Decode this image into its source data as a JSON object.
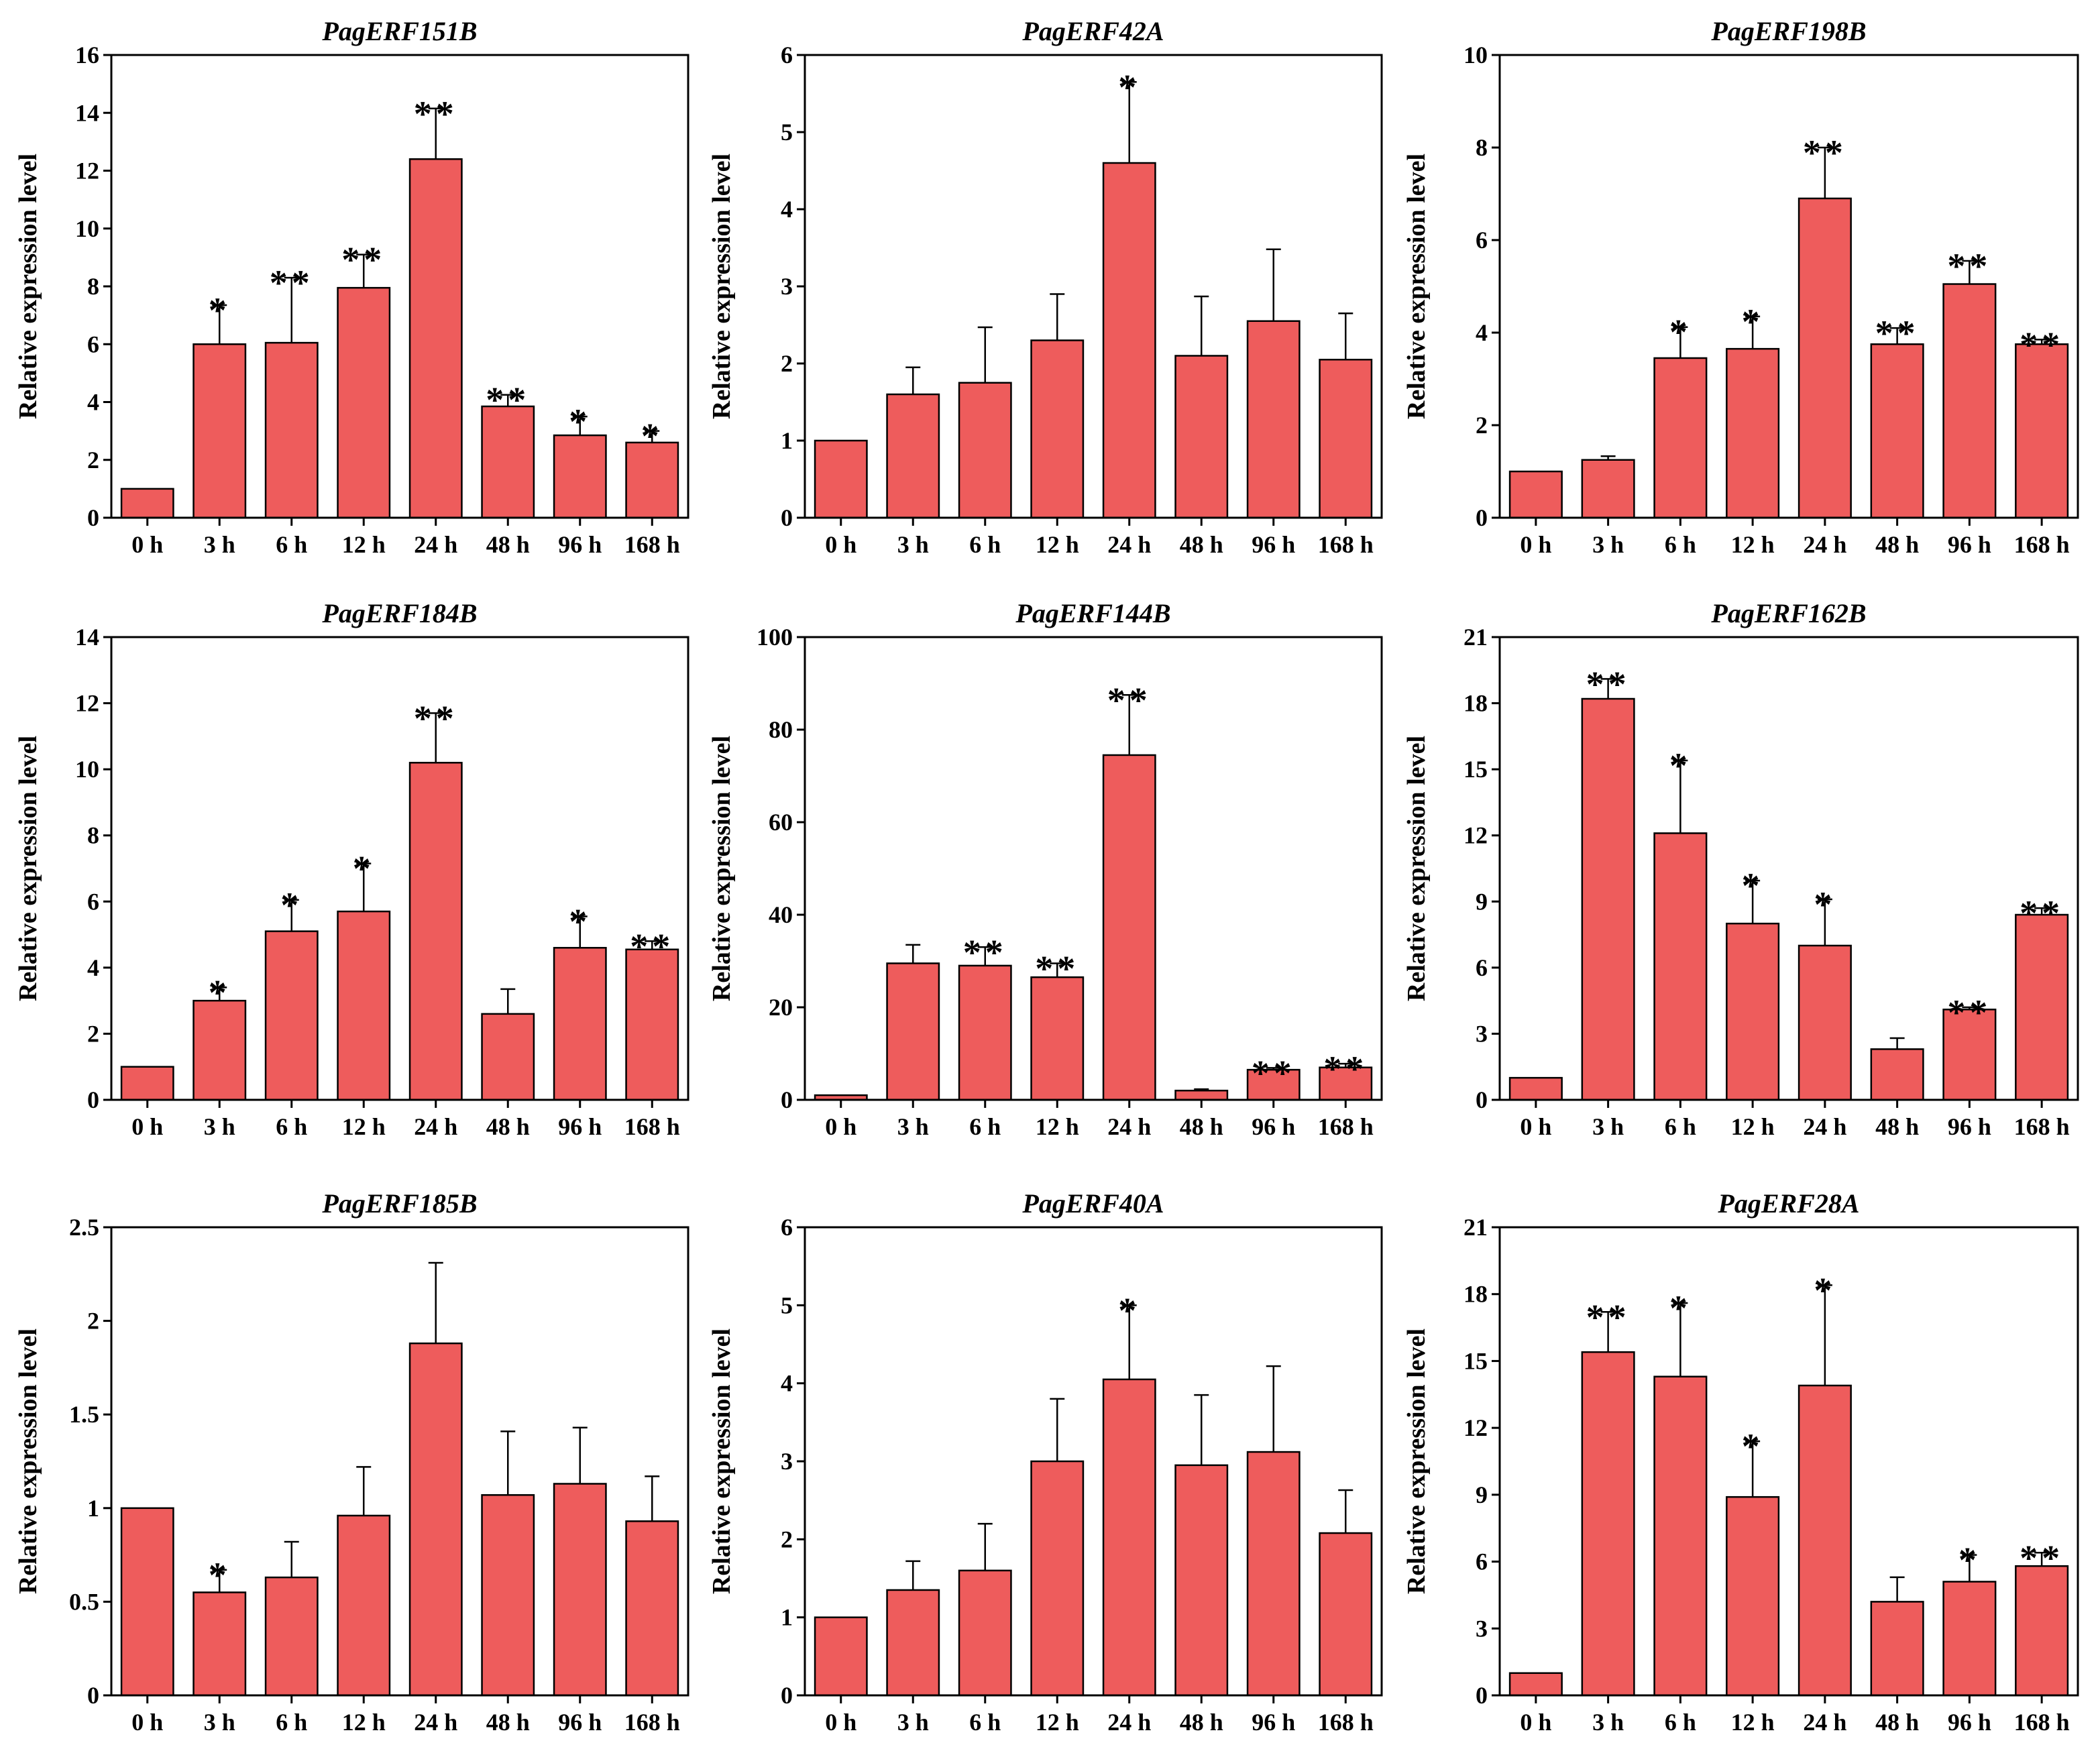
{
  "chart_data": [
    {
      "type": "bar",
      "title": "PagERF151B",
      "ylabel": "Relative expression level",
      "categories": [
        "0 h",
        "3 h",
        "6 h",
        "12 h",
        "24 h",
        "48 h",
        "96 h",
        "168 h"
      ],
      "values": [
        1.0,
        6.0,
        6.05,
        7.95,
        12.4,
        3.85,
        2.85,
        2.6
      ],
      "errors": [
        0,
        1.35,
        2.25,
        1.15,
        1.75,
        0.4,
        0.65,
        0.4
      ],
      "significance": [
        "",
        "*",
        "**",
        "**",
        "**",
        "**",
        "*",
        "*"
      ],
      "ylim": [
        0,
        16
      ],
      "yticks": [
        0,
        2,
        4,
        6,
        8,
        10,
        12,
        14,
        16
      ]
    },
    {
      "type": "bar",
      "title": "PagERF42A",
      "ylabel": "Relative expression level",
      "categories": [
        "0 h",
        "3 h",
        "6 h",
        "12 h",
        "24 h",
        "48 h",
        "96 h",
        "168 h"
      ],
      "values": [
        1.0,
        1.6,
        1.75,
        2.3,
        4.6,
        2.1,
        2.55,
        2.05
      ],
      "errors": [
        0,
        0.35,
        0.72,
        0.6,
        1.05,
        0.77,
        0.93,
        0.6
      ],
      "significance": [
        "",
        "",
        "",
        "",
        "*",
        "",
        "",
        ""
      ],
      "ylim": [
        0,
        6
      ],
      "yticks": [
        0,
        1,
        2,
        3,
        4,
        5,
        6
      ]
    },
    {
      "type": "bar",
      "title": "PagERF198B",
      "ylabel": "Relative expression level",
      "categories": [
        "0 h",
        "3 h",
        "6 h",
        "12 h",
        "24 h",
        "48 h",
        "96 h",
        "168 h"
      ],
      "values": [
        1.0,
        1.25,
        3.45,
        3.65,
        6.9,
        3.75,
        5.05,
        3.75
      ],
      "errors": [
        0,
        0.08,
        0.67,
        0.7,
        1.1,
        0.35,
        0.5,
        0.1
      ],
      "significance": [
        "",
        "",
        "*",
        "*",
        "**",
        "**",
        "**",
        "**"
      ],
      "ylim": [
        0,
        10
      ],
      "yticks": [
        0,
        2,
        4,
        6,
        8,
        10
      ]
    },
    {
      "type": "bar",
      "title": "PagERF184B",
      "ylabel": "Relative expression level",
      "categories": [
        "0 h",
        "3 h",
        "6 h",
        "12 h",
        "24 h",
        "48 h",
        "96 h",
        "168 h"
      ],
      "values": [
        1.0,
        3.0,
        5.1,
        5.7,
        10.2,
        2.6,
        4.6,
        4.55
      ],
      "errors": [
        0,
        0.4,
        0.95,
        1.45,
        1.5,
        0.75,
        0.95,
        0.25
      ],
      "significance": [
        "",
        "*",
        "*",
        "*",
        "**",
        "",
        "*",
        "**"
      ],
      "ylim": [
        0,
        14
      ],
      "yticks": [
        0,
        2,
        4,
        6,
        8,
        10,
        12,
        14
      ]
    },
    {
      "type": "bar",
      "title": "PagERF144B",
      "ylabel": "Relative expression level",
      "categories": [
        "0 h",
        "3 h",
        "6 h",
        "12 h",
        "24 h",
        "48 h",
        "96 h",
        "168 h"
      ],
      "values": [
        1.0,
        29.5,
        29.0,
        26.5,
        74.5,
        2.0,
        6.5,
        7.0
      ],
      "errors": [
        0,
        4.0,
        4.0,
        3.0,
        13.0,
        0.3,
        0.4,
        0.8
      ],
      "significance": [
        "",
        "",
        "**",
        "**",
        "**",
        "",
        "**",
        "**"
      ],
      "ylim": [
        0,
        100
      ],
      "yticks": [
        0,
        20,
        40,
        60,
        80,
        100
      ]
    },
    {
      "type": "bar",
      "title": "PagERF162B",
      "ylabel": "Relative expression level",
      "categories": [
        "0 h",
        "3 h",
        "6 h",
        "12 h",
        "24 h",
        "48 h",
        "96 h",
        "168 h"
      ],
      "values": [
        1.0,
        18.2,
        12.1,
        8.0,
        7.0,
        2.3,
        4.1,
        8.4
      ],
      "errors": [
        0,
        0.9,
        3.3,
        1.95,
        2.1,
        0.5,
        0.1,
        0.3
      ],
      "significance": [
        "",
        "**",
        "*",
        "*",
        "*",
        "",
        "**",
        "**"
      ],
      "ylim": [
        0,
        21
      ],
      "yticks": [
        0,
        3,
        6,
        9,
        12,
        15,
        18,
        21
      ]
    },
    {
      "type": "bar",
      "title": "PagERF185B",
      "ylabel": "Relative expression level",
      "categories": [
        "0 h",
        "3 h",
        "6 h",
        "12 h",
        "24 h",
        "48 h",
        "96 h",
        "168 h"
      ],
      "values": [
        1.0,
        0.55,
        0.63,
        0.96,
        1.88,
        1.07,
        1.13,
        0.93
      ],
      "errors": [
        0,
        0.12,
        0.19,
        0.26,
        0.43,
        0.34,
        0.3,
        0.24
      ],
      "significance": [
        "",
        "*",
        "",
        "",
        "",
        "",
        "",
        ""
      ],
      "ylim": [
        0,
        2.5
      ],
      "yticks": [
        "0",
        "0.5",
        "1",
        "1.5",
        "2",
        "2.5"
      ]
    },
    {
      "type": "bar",
      "title": "PagERF40A",
      "ylabel": "Relative expression level",
      "categories": [
        "0 h",
        "3 h",
        "6 h",
        "12 h",
        "24 h",
        "48 h",
        "96 h",
        "168 h"
      ],
      "values": [
        1.0,
        1.35,
        1.6,
        3.0,
        4.05,
        2.95,
        3.12,
        2.08
      ],
      "errors": [
        0,
        0.37,
        0.6,
        0.8,
        0.95,
        0.9,
        1.1,
        0.55
      ],
      "significance": [
        "",
        "",
        "",
        "",
        "*",
        "",
        "",
        ""
      ],
      "ylim": [
        0,
        6
      ],
      "yticks": [
        0,
        1,
        2,
        3,
        4,
        5,
        6
      ]
    },
    {
      "type": "bar",
      "title": "PagERF28A",
      "ylabel": "Relative expression level",
      "categories": [
        "0 h",
        "3 h",
        "6 h",
        "12 h",
        "24 h",
        "48 h",
        "96 h",
        "168 h"
      ],
      "values": [
        1.0,
        15.4,
        14.3,
        8.9,
        13.9,
        4.2,
        5.1,
        5.8
      ],
      "errors": [
        0,
        1.8,
        3.3,
        2.5,
        4.5,
        1.1,
        1.2,
        0.6
      ],
      "significance": [
        "",
        "**",
        "*",
        "*",
        "*",
        "",
        "*",
        "**"
      ],
      "ylim": [
        0,
        21
      ],
      "yticks": [
        0,
        3,
        6,
        9,
        12,
        15,
        18,
        21
      ]
    }
  ]
}
